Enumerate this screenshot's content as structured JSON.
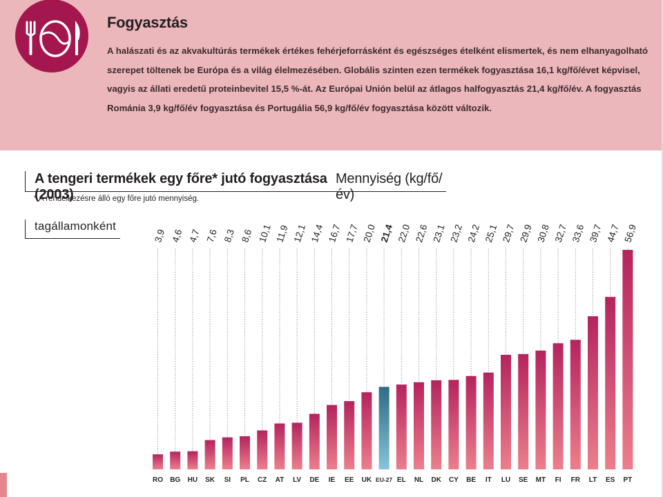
{
  "header": {
    "title": "Fogyasztás",
    "lines": [
      "A halászati és az akvakultúrás termékek értékes fehérjeforrásként és egészséges ételként elismertek, és nem elhanyagolható",
      "szerepet töltenek be Európa és a világ élelmezésében. Globális szinten ezen termékek fogyasztása 16,1 kg/fő/évet képvisel,",
      "vagyis az állati eredetű proteinbevitel 15,5 %-át. Az Európai Unión belül az átlagos halfogyasztás 21,4 kg/fő/év. A fogyasztás",
      "Románia 3,9 kg/fő/év fogyasztása és Portugália 56,9 kg/fő/év fogyasztása között változik."
    ],
    "icon": "plate-fork-knife-icon"
  },
  "colors": {
    "panel": "#ecb7bb",
    "badge": "#a4174e",
    "bar_top": "#b5235e",
    "bar_bottom": "#ec7f8c",
    "highlight_top": "#2d6b86",
    "highlight_bottom": "#86c4d9"
  },
  "chart_data": {
    "type": "bar",
    "title": "A tengeri termékek egy főre* jutó fogyasztása (2003)",
    "unit_label": "Mennyiség (kg/fő/év)",
    "footnote": "* A rendelkezésre álló egy főre jutó mennyiség.",
    "subtitle": "tagállamonként",
    "categories": [
      "RO",
      "BG",
      "HU",
      "SK",
      "SI",
      "PL",
      "CZ",
      "AT",
      "LV",
      "DE",
      "IE",
      "EE",
      "UK",
      "EU-27",
      "EL",
      "NL",
      "DK",
      "CY",
      "BE",
      "IT",
      "LU",
      "SE",
      "MT",
      "FI",
      "FR",
      "LT",
      "ES",
      "PT"
    ],
    "values": [
      3.9,
      4.6,
      4.7,
      7.6,
      8.3,
      8.6,
      10.1,
      11.9,
      12.1,
      14.4,
      16.7,
      17.7,
      20.0,
      21.4,
      22.0,
      22.6,
      23.1,
      23.2,
      24.2,
      25.1,
      29.7,
      29.9,
      30.8,
      32.7,
      33.6,
      39.7,
      44.7,
      56.9
    ],
    "value_labels": [
      "3,9",
      "4,6",
      "4,7",
      "7,6",
      "8,3",
      "8,6",
      "10,1",
      "11,9",
      "12,1",
      "14,4",
      "16,7",
      "17,7",
      "20,0",
      "21,4",
      "22,0",
      "22,6",
      "23,1",
      "23,2",
      "24,2",
      "25,1",
      "29,7",
      "29,9",
      "30,8",
      "32,7",
      "33,6",
      "39,7",
      "44,7",
      "56,9"
    ],
    "highlight": "EU-27",
    "ylim": [
      0,
      56.9
    ],
    "grid": false,
    "legend": "none"
  }
}
